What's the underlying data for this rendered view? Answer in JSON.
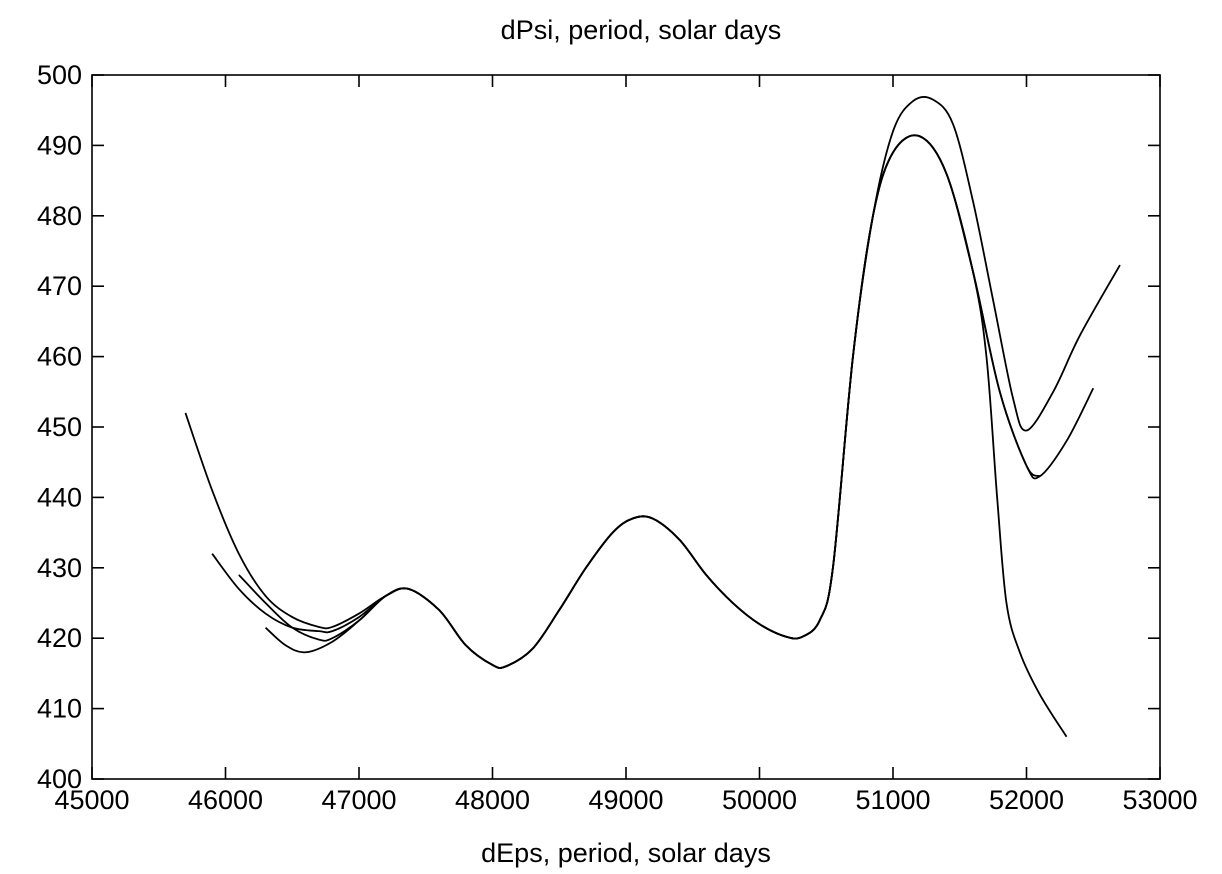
{
  "chart_data": {
    "type": "line",
    "title": "dPsi, period, solar days",
    "xlabel": "dEps, period, solar days",
    "ylabel": "",
    "xlim": [
      45000,
      53000
    ],
    "ylim": [
      400,
      500
    ],
    "xticks": [
      45000,
      46000,
      47000,
      48000,
      49000,
      50000,
      51000,
      52000,
      53000
    ],
    "yticks": [
      400,
      410,
      420,
      430,
      440,
      450,
      460,
      470,
      480,
      490,
      500
    ],
    "grid": false,
    "legend": "none",
    "series": [
      {
        "x": [
          45700,
          45900,
          46100,
          46300,
          46500,
          46700,
          46800,
          47000,
          47200,
          47370,
          47600,
          47800,
          48000,
          48100,
          48300,
          48500,
          48700,
          48900,
          49050,
          49200,
          49400,
          49600,
          49800,
          50000,
          50200,
          50320,
          50450,
          50550,
          50700,
          50850,
          51000,
          51150,
          51300,
          51450,
          51600,
          51750,
          51900,
          52000,
          52200,
          52400,
          52700
        ],
        "y": [
          452,
          441,
          432,
          426,
          423,
          421.6,
          421.6,
          423.5,
          426,
          427,
          424,
          419,
          416.2,
          416,
          418.5,
          424,
          430,
          435,
          437,
          437,
          434,
          429,
          425,
          422,
          420.2,
          420.2,
          422.5,
          430,
          460,
          480,
          492,
          496.3,
          496.5,
          493,
          482,
          468,
          454,
          449.5,
          455,
          463,
          473
        ]
      },
      {
        "x": [
          45900,
          46100,
          46300,
          46500,
          46700,
          46800,
          47000,
          47200,
          47370,
          47600,
          47800,
          48000,
          48100,
          48300,
          48500,
          48700,
          48900,
          49050,
          49200,
          49400,
          49600,
          49800,
          50000,
          50200,
          50320,
          50450,
          50550,
          50700,
          50850,
          51000,
          51200,
          51400,
          51600,
          51800,
          52000,
          52100,
          52300,
          52500
        ],
        "y": [
          432,
          427,
          423.5,
          421.5,
          421,
          421,
          423,
          426,
          427,
          424,
          419,
          416.2,
          416,
          418.5,
          424,
          430,
          435,
          437,
          437,
          434,
          429,
          425,
          422,
          420.2,
          420.2,
          422.5,
          430,
          460,
          480,
          489,
          491.3,
          486,
          472,
          455,
          444.5,
          443,
          448,
          455.5
        ]
      },
      {
        "x": [
          46100,
          46300,
          46500,
          46700,
          46800,
          47000,
          47200,
          47370,
          47600,
          47800,
          48000,
          48100,
          48300,
          48500,
          48700,
          48900,
          49050,
          49200,
          49400,
          49600,
          49800,
          50000,
          50200,
          50320,
          50450,
          50550,
          50700,
          50850,
          51000,
          51200,
          51400,
          51600,
          51800,
          52000,
          52100
        ],
        "y": [
          429,
          425,
          421.5,
          419.8,
          420,
          422.5,
          426,
          427,
          424,
          419,
          416.2,
          416,
          418.5,
          424,
          430,
          435,
          437,
          437,
          434,
          429,
          425,
          422,
          420.2,
          420.2,
          422.5,
          430,
          460,
          480,
          489,
          491.3,
          486,
          472,
          455,
          444.5,
          443
        ]
      },
      {
        "x": [
          46300,
          46450,
          46600,
          46800,
          47000,
          47200,
          47370,
          47600,
          47800,
          48000,
          48100,
          48300,
          48500,
          48700,
          48900,
          49050,
          49200,
          49400,
          49600,
          49800,
          50000,
          50200,
          50320,
          50450,
          50550,
          50700,
          50850,
          51000,
          51200,
          51400,
          51600,
          51700,
          51780,
          51850,
          51950,
          52100,
          52300
        ],
        "y": [
          421.5,
          419,
          418,
          419.5,
          422.5,
          426,
          427,
          424,
          419,
          416.2,
          416,
          418.5,
          424,
          430,
          435,
          437,
          437,
          434,
          429,
          425,
          422,
          420.2,
          420.2,
          422.5,
          430,
          460,
          480,
          489,
          491.3,
          486,
          472,
          460,
          440,
          425,
          418,
          412,
          406
        ]
      }
    ]
  }
}
